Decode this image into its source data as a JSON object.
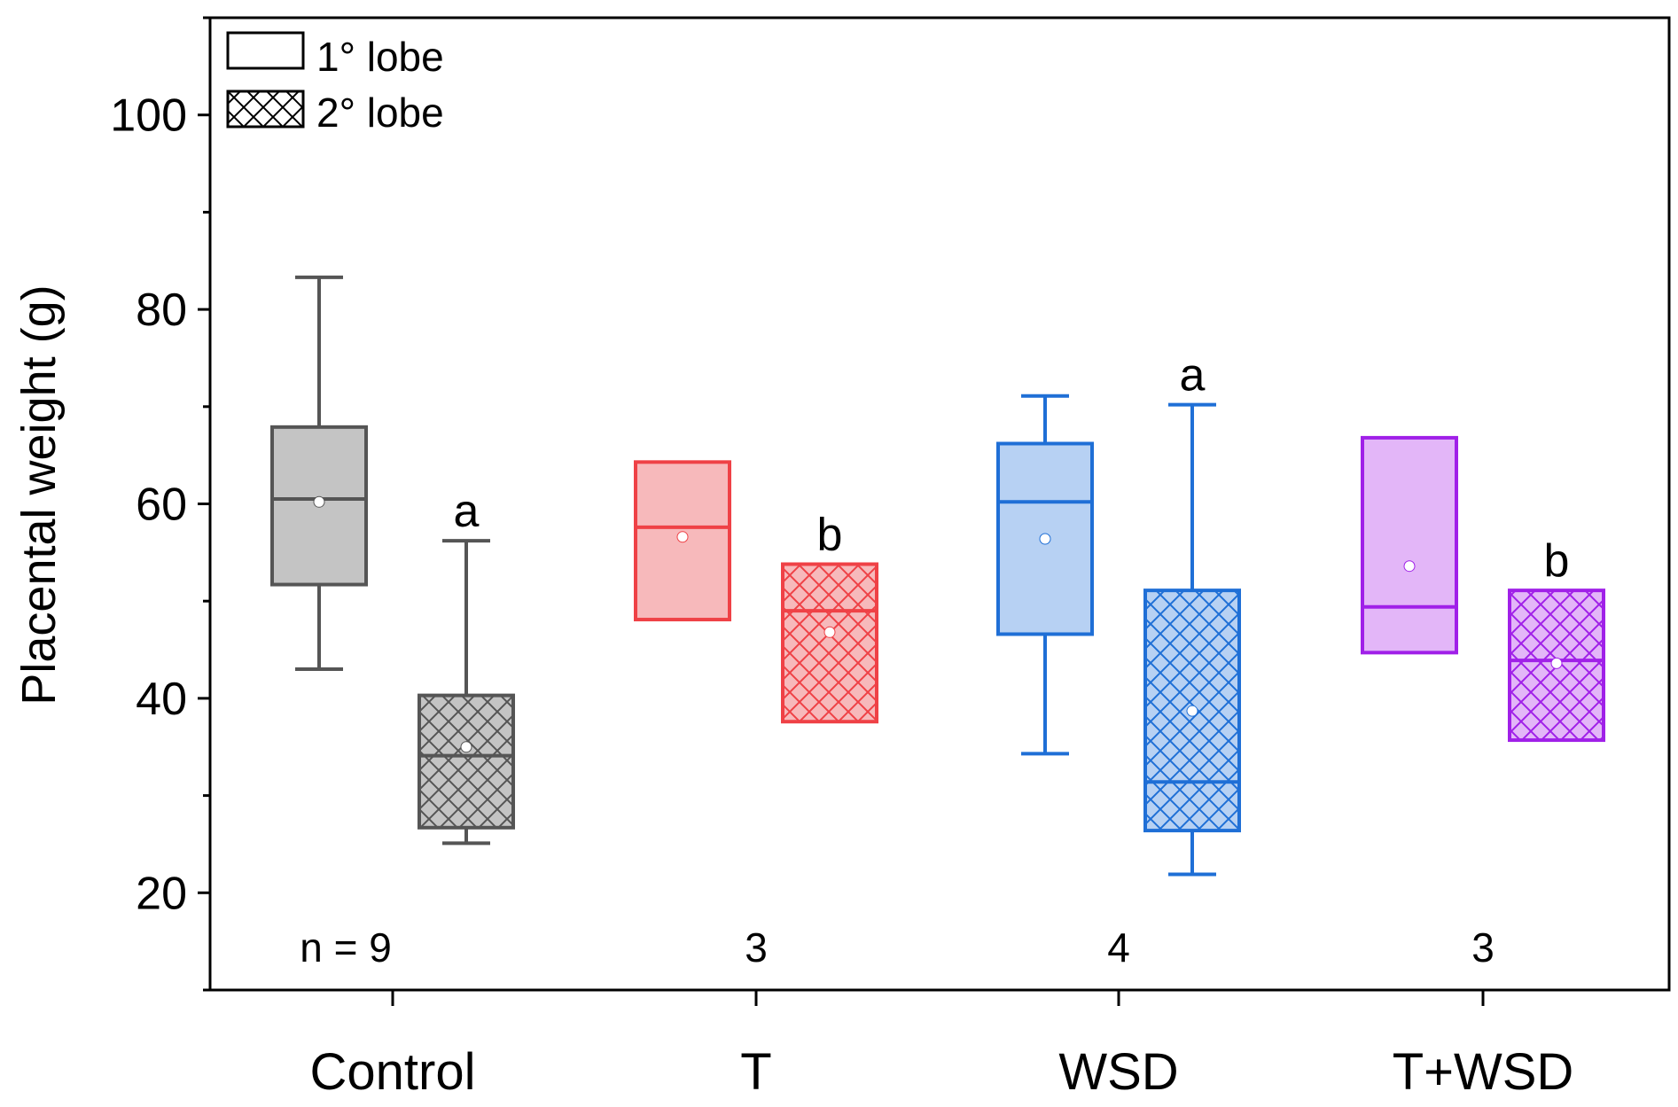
{
  "chart_data": {
    "type": "box",
    "title": "",
    "xlabel": "",
    "ylabel": "Placental weight (g)",
    "ylim": [
      10,
      110
    ],
    "yticks": [
      20,
      40,
      60,
      80,
      100
    ],
    "categories": [
      "Control",
      "T",
      "WSD",
      "T+WSD"
    ],
    "n_labels": [
      "n = 9",
      "3",
      "4",
      "3"
    ],
    "legend": {
      "position": "top-left",
      "entries": [
        "1° lobe",
        "2° lobe"
      ]
    },
    "series": [
      {
        "name": "1° lobe",
        "pattern": "solid",
        "boxes": [
          {
            "whisker_low": 43,
            "q1": 51.7,
            "median": 60.5,
            "q3": 67.9,
            "whisker_high": 83.3,
            "mean": 60.2,
            "sig": ""
          },
          {
            "whisker_low": null,
            "q1": 48.1,
            "median": 57.6,
            "q3": 64.3,
            "whisker_high": null,
            "mean": 56.6,
            "sig": ""
          },
          {
            "whisker_low": 34.3,
            "q1": 46.6,
            "median": 60.2,
            "q3": 66.2,
            "whisker_high": 71.1,
            "mean": 56.4,
            "sig": ""
          },
          {
            "whisker_low": null,
            "q1": 44.7,
            "median": 49.4,
            "q3": 66.8,
            "whisker_high": null,
            "mean": 53.6,
            "sig": ""
          }
        ]
      },
      {
        "name": "2° lobe",
        "pattern": "crosshatch",
        "boxes": [
          {
            "whisker_low": 25.1,
            "q1": 26.7,
            "median": 34.1,
            "q3": 40.3,
            "whisker_high": 56.2,
            "mean": 35,
            "sig": "a"
          },
          {
            "whisker_low": null,
            "q1": 37.6,
            "median": 49,
            "q3": 53.8,
            "whisker_high": null,
            "mean": 46.8,
            "sig": "b"
          },
          {
            "whisker_low": 21.9,
            "q1": 26.4,
            "median": 31.4,
            "q3": 51.1,
            "whisker_high": 70.2,
            "mean": 38.7,
            "sig": "a"
          },
          {
            "whisker_low": null,
            "q1": 35.7,
            "median": 43.9,
            "q3": 51.1,
            "whisker_high": null,
            "mean": 43.6,
            "sig": "b"
          }
        ]
      }
    ],
    "group_colors": {
      "Control": {
        "stroke": "#555555",
        "fill": "#c4c4c4"
      },
      "T": {
        "stroke": "#ef4146",
        "fill": "#f7b9bb"
      },
      "WSD": {
        "stroke": "#1f6fd6",
        "fill": "#b7d1f3"
      },
      "T+WSD": {
        "stroke": "#a020e8",
        "fill": "#e3b6f8"
      }
    }
  }
}
